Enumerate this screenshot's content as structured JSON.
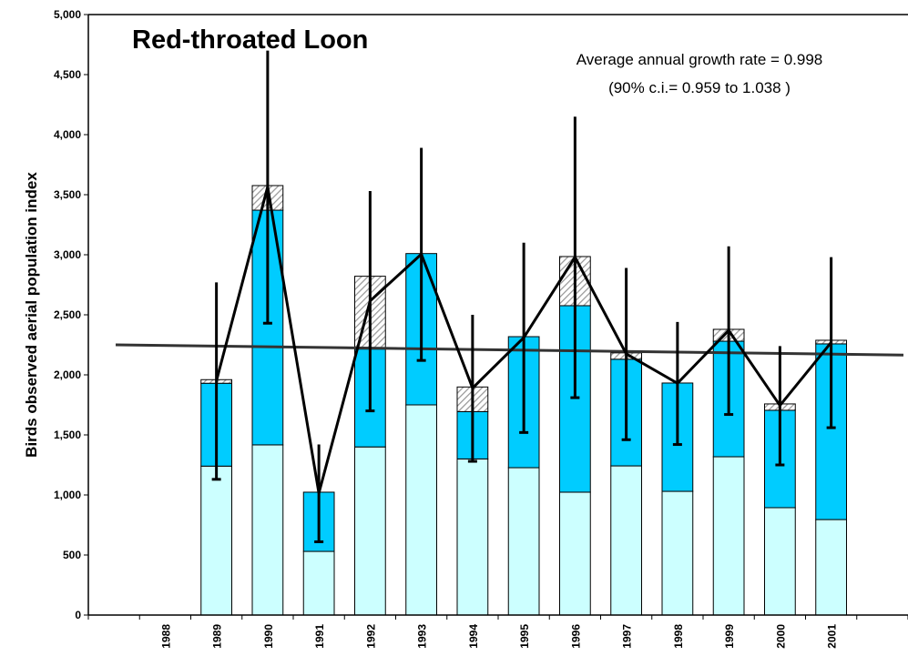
{
  "chart_data": {
    "type": "bar",
    "stacked": true,
    "title": "Red-throated Loon",
    "annotations": [
      "Average annual growth rate = 0.998",
      "(90% c.i.= 0.959 to 1.038 )"
    ],
    "y_label": "Birds observed aerial population index",
    "categories": [
      null,
      "1988",
      "1989",
      "1990",
      "1991",
      "1992",
      "1993",
      "1994",
      "1995",
      "1996",
      "1997",
      "1998",
      "1999",
      "2000",
      "2001",
      null
    ],
    "series": [
      {
        "color": "#ccffff",
        "values": [
          null,
          null,
          1240,
          1417,
          530,
          1400,
          1750,
          1300,
          1227,
          1023,
          1242,
          1030,
          1318,
          894,
          795,
          null
        ]
      },
      {
        "color": "#00ccff",
        "values": [
          null,
          null,
          690,
          1954,
          493,
          815,
          1260,
          394,
          1091,
          1553,
          888,
          902,
          962,
          811,
          1463,
          null
        ]
      },
      {
        "color": "#999999",
        "pattern": "hatch",
        "values": [
          null,
          null,
          30,
          205,
          0,
          606,
          0,
          205,
          0,
          409,
          53,
          0,
          99,
          53,
          30,
          null
        ]
      }
    ],
    "line": {
      "type": "line",
      "color": "#000000",
      "values": [
        null,
        null,
        1950,
        3565,
        1015,
        2615,
        3005,
        1890,
        2310,
        2980,
        2175,
        1930,
        2370,
        1745,
        2270,
        null
      ],
      "errors": [
        null,
        null,
        820,
        1135,
        405,
        915,
        885,
        610,
        790,
        1170,
        715,
        510,
        700,
        495,
        710,
        null
      ]
    },
    "trend": {
      "color": "#333333",
      "values": [
        2250,
        2165
      ]
    },
    "ylim": [
      0,
      5000
    ],
    "yticks": [
      0,
      500,
      {
        "value": 1000,
        "label": "1,000"
      },
      {
        "value": 1500,
        "label": "1,500"
      },
      {
        "value": 2000,
        "label": "2,000"
      },
      {
        "value": 2500,
        "label": "2,500"
      },
      {
        "value": 3000,
        "label": "3,000"
      },
      {
        "value": 3500,
        "label": "3,500"
      },
      {
        "value": 4000,
        "label": "4,000"
      },
      {
        "value": 4500,
        "label": "4,500"
      },
      {
        "value": 5000,
        "label": "5,000"
      }
    ],
    "grid": false
  }
}
